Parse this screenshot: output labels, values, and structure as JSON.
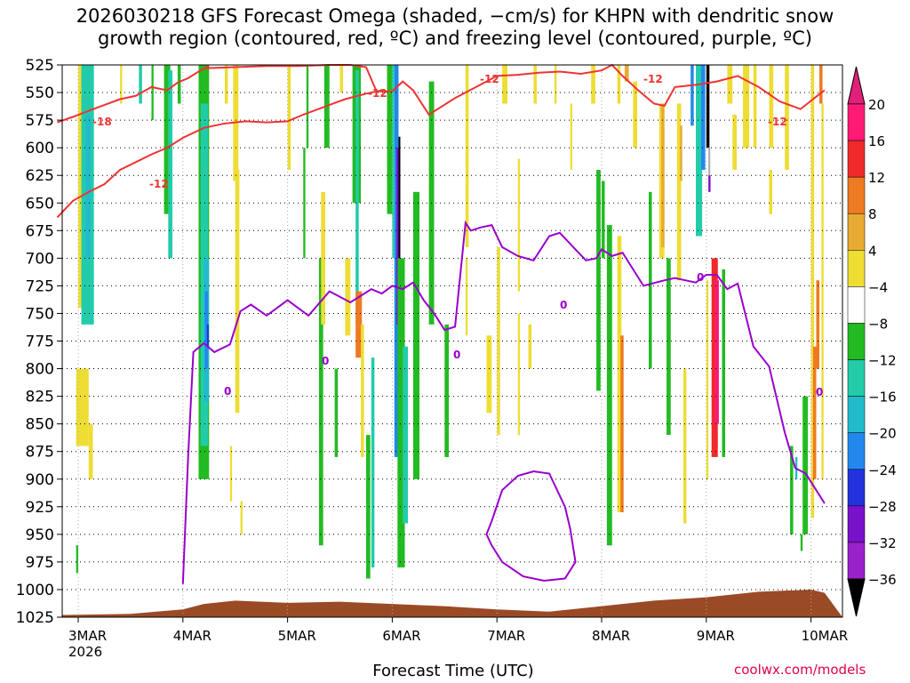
{
  "title": "2026030218 GFS Forecast Omega (shaded, −cm/s) for KHPN with dendritic snow\ngrowth region (contoured, red, ºC) and freezing level (contoured, purple, ºC)",
  "xlabel": "Forecast Time (UTC)",
  "credit": "coolwx.com/models",
  "colors": {
    "dendritic_contour": "#ee3333",
    "freezing_contour": "#9900cc",
    "terrain": "#9b4a26"
  },
  "chart_data": {
    "type": "heatmap",
    "title": "2026030218 GFS Forecast Omega (shaded, −cm/s) for KHPN with dendritic snow growth region (contoured, red, ºC) and freezing level (contoured, purple, ºC)",
    "xlabel": "Forecast Time (UTC)",
    "ylabel": "",
    "x_ticks": [
      "3MAR",
      "4MAR",
      "5MAR",
      "6MAR",
      "7MAR",
      "8MAR",
      "9MAR",
      "10MAR"
    ],
    "x_tick_year": "2026",
    "y_ticks": [
      525,
      550,
      575,
      600,
      625,
      650,
      675,
      700,
      725,
      750,
      775,
      800,
      825,
      850,
      875,
      900,
      925,
      950,
      975,
      1000,
      1025
    ],
    "xlim": [
      -0.2,
      7.13
    ],
    "ylim": [
      1025,
      525
    ],
    "grid": true,
    "colorbar": {
      "labels": [
        "20",
        "16",
        "12",
        "8",
        "4",
        "−4",
        "−8",
        "−12",
        "−16",
        "−20",
        "−24",
        "−28",
        "−32",
        "−36"
      ],
      "colors": [
        "#ff1a75",
        "#ee2a2a",
        "#ee7a22",
        "#e9aa33",
        "#eedd33",
        "#ffffff",
        "#22bb22",
        "#22ccaa",
        "#22bbcc",
        "#2288ee",
        "#2233dd",
        "#7a11cc",
        "#9a22cc",
        "#aaaaaa"
      ],
      "above_color": "#e0207a",
      "below_color": "#000000"
    },
    "contour_labels": {
      "red": [
        "-18",
        "-12",
        "-12",
        "-12",
        "-12",
        "-12"
      ],
      "purple": [
        "0",
        "0",
        "0",
        "0",
        "0",
        "0",
        "0"
      ]
    },
    "series": [
      {
        "name": "-18",
        "color": "#ee3333",
        "x": [
          -0.2,
          -0.05,
          0.2,
          0.4,
          0.55,
          0.7,
          0.85,
          0.95,
          1.05,
          1.15,
          1.25
        ],
        "y": [
          577,
          572,
          563,
          556,
          553,
          545,
          548,
          541,
          537,
          531,
          526
        ]
      },
      {
        "name": "-12 (lower)",
        "color": "#ee3333",
        "x": [
          -0.2,
          -0.05,
          0.1,
          0.25,
          0.4,
          0.55,
          0.7,
          0.85,
          1.0,
          1.2,
          1.4,
          1.6,
          1.8,
          2.0,
          2.15,
          2.35,
          2.55,
          2.75,
          2.9
        ],
        "y": [
          663,
          648,
          640,
          633,
          620,
          613,
          606,
          600,
          591,
          582,
          578,
          576,
          577,
          576,
          570,
          563,
          556,
          551,
          548
        ]
      },
      {
        "name": "-12 (upper)",
        "color": "#ee3333",
        "x": [
          1.2,
          1.5,
          1.8,
          2.1,
          2.4,
          2.6,
          2.75,
          2.85,
          3.0,
          3.1,
          3.2,
          3.35,
          3.6,
          3.8,
          4.0,
          4.2,
          4.4,
          4.6,
          4.8,
          5.0,
          5.1,
          5.2,
          5.35,
          5.5,
          5.6,
          5.7,
          5.9,
          6.1,
          6.3,
          6.5,
          6.7,
          6.9,
          7.1,
          7.13
        ],
        "y": [
          528,
          527,
          526,
          526,
          525,
          525,
          527,
          549,
          549,
          540,
          548,
          570,
          555,
          545,
          535,
          534,
          532,
          531,
          533,
          530,
          525,
          535,
          548,
          560,
          562,
          545,
          543,
          540,
          535,
          545,
          558,
          565,
          550,
          548
        ]
      },
      {
        "name": "0 (freezing level)",
        "color": "#9900cc",
        "x": [
          1.0,
          1.05,
          1.1,
          1.2,
          1.3,
          1.45,
          1.55,
          1.65,
          1.8,
          2.0,
          2.2,
          2.4,
          2.6,
          2.8,
          2.9,
          3.0,
          3.1,
          3.2,
          3.3,
          3.4,
          3.5,
          3.6,
          3.7,
          3.75,
          3.85,
          3.95,
          4.05,
          4.2,
          4.35,
          4.5,
          4.6,
          4.75,
          4.85,
          4.95,
          5.0,
          5.1,
          5.2,
          5.4,
          5.6,
          5.7,
          5.8,
          5.9,
          6.0,
          6.1,
          6.2,
          6.3,
          6.45,
          6.6,
          6.75,
          6.85,
          6.95,
          7.05,
          7.13
        ],
        "y": [
          995,
          880,
          785,
          777,
          785,
          778,
          748,
          742,
          752,
          738,
          752,
          730,
          740,
          728,
          732,
          725,
          728,
          722,
          738,
          750,
          765,
          762,
          668,
          675,
          672,
          670,
          690,
          698,
          702,
          680,
          677,
          692,
          702,
          700,
          692,
          698,
          695,
          725,
          720,
          718,
          720,
          722,
          715,
          715,
          728,
          723,
          780,
          798,
          858,
          890,
          895,
          910,
          922
        ]
      },
      {
        "name": "0 (closed)",
        "color": "#9900cc",
        "x": [
          3.95,
          4.05,
          4.2,
          4.35,
          4.5,
          4.55,
          4.65,
          4.7,
          4.75,
          4.65,
          4.45,
          4.25,
          4.05,
          3.95,
          3.9,
          3.95
        ],
        "y": [
          938,
          910,
          897,
          893,
          895,
          905,
          925,
          945,
          975,
          990,
          992,
          988,
          975,
          960,
          950,
          938
        ]
      }
    ],
    "terrain_pressure": {
      "x": [
        -0.2,
        0.5,
        1.0,
        1.2,
        1.5,
        2.0,
        2.5,
        3.0,
        3.5,
        4.0,
        4.5,
        5.0,
        5.5,
        6.0,
        6.5,
        7.0,
        7.13
      ],
      "y": [
        1023,
        1022,
        1018,
        1013,
        1010,
        1012,
        1011,
        1013,
        1015,
        1018,
        1020,
        1015,
        1010,
        1007,
        1002,
        1000,
        1003
      ]
    }
  }
}
